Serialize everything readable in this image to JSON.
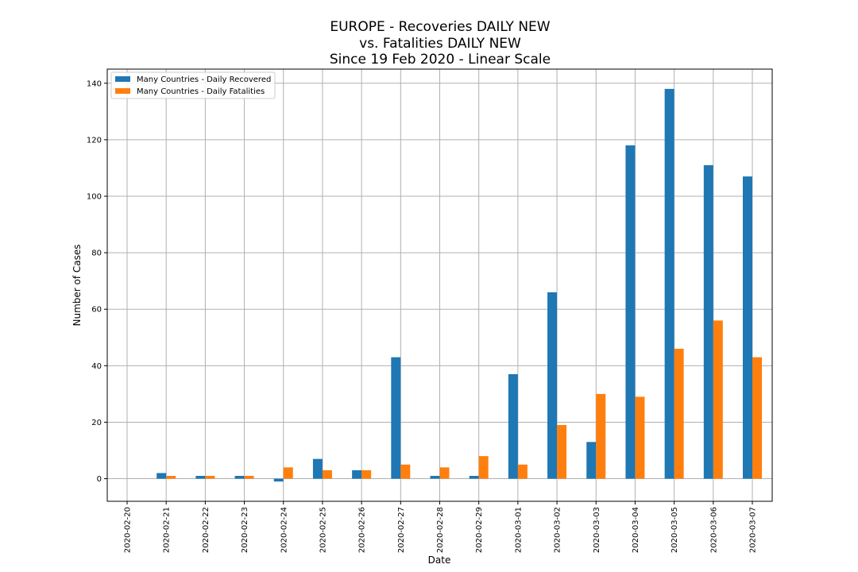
{
  "chart_data": {
    "type": "bar",
    "title": [
      "EUROPE - Recoveries DAILY NEW",
      "vs. Fatalities DAILY NEW",
      "Since 19 Feb 2020 - Linear Scale"
    ],
    "xlabel": "Date",
    "ylabel": "Number of Cases",
    "ylim": [
      -8,
      145
    ],
    "yticks": [
      0,
      20,
      40,
      60,
      80,
      100,
      120,
      140
    ],
    "grid": true,
    "legend_position": "top-left",
    "categories": [
      "2020-02-20",
      "2020-02-21",
      "2020-02-22",
      "2020-02-23",
      "2020-02-24",
      "2020-02-25",
      "2020-02-26",
      "2020-02-27",
      "2020-02-28",
      "2020-02-29",
      "2020-03-01",
      "2020-03-02",
      "2020-03-03",
      "2020-03-04",
      "2020-03-05",
      "2020-03-06",
      "2020-03-07"
    ],
    "series": [
      {
        "name": "Many Countries - Daily Recovered",
        "color": "#1f77b4",
        "values": [
          0,
          2,
          1,
          1,
          -1,
          7,
          3,
          43,
          1,
          1,
          37,
          66,
          13,
          118,
          138,
          111,
          107
        ]
      },
      {
        "name": "Many Countries - Daily Fatalities",
        "color": "#ff7f0e",
        "values": [
          0,
          1,
          1,
          1,
          4,
          3,
          3,
          5,
          4,
          8,
          5,
          19,
          30,
          29,
          46,
          56,
          43
        ]
      }
    ]
  }
}
